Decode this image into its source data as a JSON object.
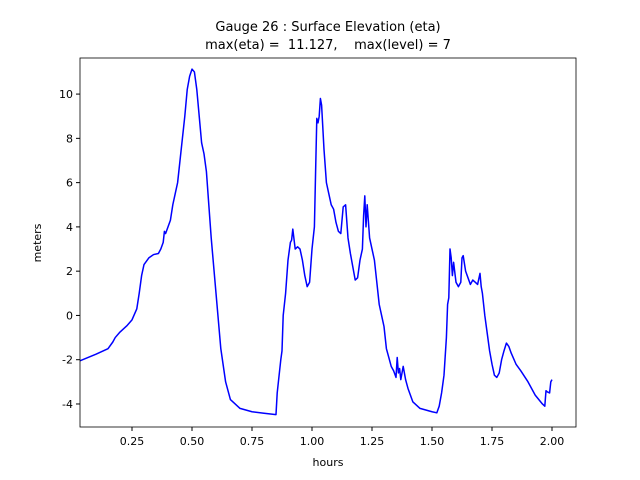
{
  "chart_data": {
    "type": "line",
    "title_lines": [
      "Gauge 26 : Surface Elevation (eta)",
      "max(eta) =  11.127,    max(level) = 7"
    ],
    "x_label": "hours",
    "y_label": "meters",
    "xlim": [
      0.0333,
      2.1
    ],
    "ylim": [
      -5.04,
      11.63
    ],
    "xticks": [
      0.25,
      {
        "value": 0.5,
        "label": "0.50"
      },
      0.75,
      {
        "value": 1.0,
        "label": "1.00"
      },
      1.25,
      {
        "value": 1.5,
        "label": "1.50"
      },
      1.75,
      {
        "value": 2.0,
        "label": "2.00"
      }
    ],
    "yticks": [
      -4,
      -2,
      0,
      2,
      4,
      6,
      8,
      10
    ],
    "grid": false,
    "series": [
      {
        "color": "#0000ff",
        "x": [
          0.033,
          0.1,
          0.15,
          0.17,
          0.18,
          0.2,
          0.23,
          0.25,
          0.27,
          0.28,
          0.29,
          0.3,
          0.32,
          0.34,
          0.36,
          0.37,
          0.38,
          0.385,
          0.39,
          0.4,
          0.41,
          0.42,
          0.43,
          0.44,
          0.45,
          0.46,
          0.47,
          0.48,
          0.49,
          0.5,
          0.51,
          0.52,
          0.53,
          0.54,
          0.55,
          0.56,
          0.57,
          0.58,
          0.6,
          0.62,
          0.64,
          0.66,
          0.7,
          0.75,
          0.8,
          0.85,
          0.855,
          0.86,
          0.87,
          0.875,
          0.88,
          0.89,
          0.9,
          0.91,
          0.915,
          0.92,
          0.93,
          0.94,
          0.95,
          0.96,
          0.97,
          0.98,
          0.99,
          1.0,
          1.01,
          1.015,
          1.02,
          1.025,
          1.03,
          1.035,
          1.04,
          1.05,
          1.06,
          1.07,
          1.08,
          1.09,
          1.1,
          1.11,
          1.12,
          1.13,
          1.14,
          1.15,
          1.16,
          1.17,
          1.18,
          1.19,
          1.2,
          1.21,
          1.215,
          1.22,
          1.225,
          1.23,
          1.24,
          1.25,
          1.26,
          1.27,
          1.28,
          1.29,
          1.3,
          1.31,
          1.32,
          1.33,
          1.34,
          1.35,
          1.355,
          1.36,
          1.365,
          1.37,
          1.38,
          1.39,
          1.4,
          1.42,
          1.45,
          1.5,
          1.52,
          1.53,
          1.54,
          1.55,
          1.56,
          1.565,
          1.57,
          1.575,
          1.58,
          1.585,
          1.59,
          1.6,
          1.61,
          1.62,
          1.625,
          1.63,
          1.64,
          1.65,
          1.66,
          1.67,
          1.68,
          1.69,
          1.7,
          1.705,
          1.71,
          1.72,
          1.73,
          1.74,
          1.75,
          1.76,
          1.77,
          1.78,
          1.79,
          1.8,
          1.81,
          1.82,
          1.83,
          1.85,
          1.87,
          1.9,
          1.93,
          1.96,
          1.97,
          1.975,
          1.98,
          1.99,
          1.995,
          2.0
        ],
        "values": [
          -2.05,
          -1.75,
          -1.5,
          -1.2,
          -1.0,
          -0.75,
          -0.45,
          -0.2,
          0.3,
          1.0,
          1.8,
          2.3,
          2.6,
          2.75,
          2.8,
          3.0,
          3.3,
          3.8,
          3.7,
          4.0,
          4.3,
          5.0,
          5.5,
          6.0,
          7.0,
          8.0,
          9.0,
          10.2,
          10.8,
          11.127,
          11.0,
          10.2,
          9.0,
          7.8,
          7.3,
          6.5,
          5.0,
          3.5,
          1.0,
          -1.5,
          -3.0,
          -3.8,
          -4.2,
          -4.35,
          -4.42,
          -4.48,
          -3.5,
          -3.0,
          -2.0,
          -1.6,
          0,
          1.0,
          2.5,
          3.3,
          3.4,
          3.9,
          3.0,
          3.1,
          3.0,
          2.5,
          1.8,
          1.3,
          1.5,
          3.0,
          4.0,
          6.5,
          8.9,
          8.7,
          9.0,
          9.8,
          9.5,
          7.5,
          6.0,
          5.5,
          5.0,
          4.8,
          4.2,
          3.8,
          3.7,
          4.9,
          5.0,
          3.5,
          2.8,
          2.2,
          1.6,
          1.7,
          2.5,
          3.0,
          4.5,
          5.4,
          4.0,
          5.0,
          3.5,
          3.0,
          2.5,
          1.5,
          0.5,
          0,
          -0.5,
          -1.5,
          -1.9,
          -2.3,
          -2.5,
          -2.8,
          -1.9,
          -2.6,
          -2.4,
          -2.9,
          -2.3,
          -2.9,
          -3.3,
          -3.9,
          -4.2,
          -4.35,
          -4.4,
          -4.1,
          -3.5,
          -2.7,
          -1.0,
          0.5,
          0.8,
          3.0,
          2.6,
          1.8,
          2.4,
          1.5,
          1.3,
          1.5,
          2.6,
          2.7,
          2.0,
          1.7,
          1.4,
          1.6,
          1.5,
          1.4,
          1.9,
          1.3,
          1.0,
          0,
          -0.8,
          -1.6,
          -2.2,
          -2.7,
          -2.8,
          -2.6,
          -2.0,
          -1.6,
          -1.25,
          -1.4,
          -1.7,
          -2.2,
          -2.5,
          -3.0,
          -3.6,
          -4.0,
          -4.1,
          -3.4,
          -3.45,
          -3.5,
          -3.0,
          -2.9
        ]
      }
    ]
  }
}
